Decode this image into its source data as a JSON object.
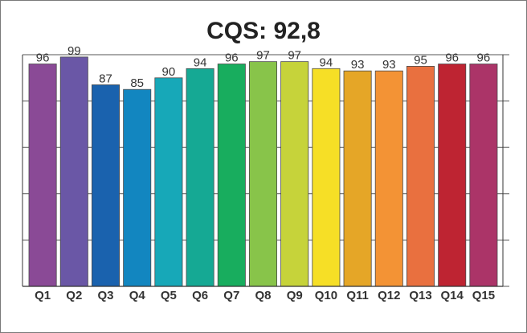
{
  "chart_data": {
    "type": "bar",
    "title": "CQS: 92,8",
    "categories": [
      "Q1",
      "Q2",
      "Q3",
      "Q4",
      "Q5",
      "Q6",
      "Q7",
      "Q8",
      "Q9",
      "Q10",
      "Q11",
      "Q12",
      "Q13",
      "Q14",
      "Q15"
    ],
    "values": [
      96,
      99,
      87,
      85,
      90,
      94,
      96,
      97,
      97,
      94,
      93,
      93,
      95,
      96,
      96
    ],
    "colors": [
      "#8a4a96",
      "#6a57a6",
      "#1a62ae",
      "#1286c0",
      "#17a8b8",
      "#15a994",
      "#18ad5e",
      "#88c44a",
      "#c6d33a",
      "#f6df26",
      "#e5a627",
      "#f39335",
      "#e9703f",
      "#be2432",
      "#ab3468"
    ],
    "ylim": [
      0,
      100
    ],
    "grid": true,
    "legend": "none",
    "xlabel": "",
    "ylabel": ""
  }
}
